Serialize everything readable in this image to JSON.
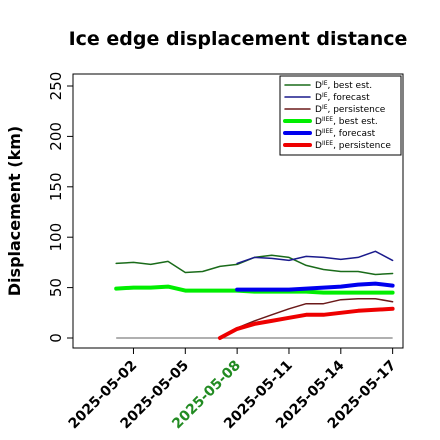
{
  "chart_data": {
    "type": "line",
    "title": "Ice edge displacement distance",
    "ylabel": "Displacement (km)",
    "xlabel": "",
    "ylim": [
      0,
      250
    ],
    "xlim": [
      -1.5,
      17.6
    ],
    "yticks": [
      0,
      50,
      100,
      150,
      200,
      250
    ],
    "xticks": [
      {
        "x": 2,
        "label": "2025-05-02",
        "color": "#000000"
      },
      {
        "x": 5,
        "label": "2025-05-05",
        "color": "#000000"
      },
      {
        "x": 8,
        "label": "2025-05-08",
        "color": "#228b22"
      },
      {
        "x": 11,
        "label": "2025-05-11",
        "color": "#000000"
      },
      {
        "x": 14,
        "label": "2025-05-14",
        "color": "#000000"
      },
      {
        "x": 17,
        "label": "2025-05-17",
        "color": "#000000"
      }
    ],
    "zero_line": {
      "x": [
        1,
        17
      ],
      "y": 0,
      "color": "#808080"
    },
    "series": [
      {
        "name": "DIE, best est.",
        "color": "#1a6b1a",
        "width": 1.5,
        "x": [
          1,
          2,
          3,
          4,
          5,
          6,
          7,
          8,
          9,
          10,
          11,
          12,
          13,
          14,
          15,
          16,
          17
        ],
        "y": [
          74,
          75,
          73,
          76,
          65,
          66,
          71,
          73,
          80,
          82,
          80,
          72,
          68,
          66,
          66,
          63,
          64
        ]
      },
      {
        "name": "DIE, forecast",
        "color": "#1a1a8c",
        "width": 1.5,
        "x": [
          8,
          9,
          10,
          11,
          12,
          13,
          14,
          15,
          16,
          17
        ],
        "y": [
          74,
          80,
          79,
          77,
          81,
          80,
          78,
          80,
          86,
          77
        ]
      },
      {
        "name": "DIE, persistence",
        "color": "#6b1a1a",
        "width": 1.5,
        "x": [
          7,
          8,
          9,
          10,
          11,
          12,
          13,
          14,
          15,
          16,
          17
        ],
        "y": [
          0,
          10,
          17,
          23,
          29,
          34,
          34,
          38,
          39,
          39,
          36
        ]
      },
      {
        "name": "DIIEE, best est.",
        "color": "#00ee00",
        "width": 4,
        "x": [
          1,
          2,
          3,
          4,
          5,
          6,
          7,
          8,
          9,
          10,
          11,
          12,
          13,
          14,
          15,
          16,
          17
        ],
        "y": [
          49,
          50,
          50,
          51,
          47,
          47,
          47,
          47,
          46,
          46,
          46,
          46,
          45,
          45,
          45,
          45,
          45
        ]
      },
      {
        "name": "DIIEE, forecast",
        "color": "#0000ee",
        "width": 4,
        "x": [
          8,
          9,
          10,
          11,
          12,
          13,
          14,
          15,
          16,
          17
        ],
        "y": [
          48,
          48,
          48,
          48,
          49,
          50,
          51,
          53,
          54,
          52
        ]
      },
      {
        "name": "DIIEE, persistence",
        "color": "#ee0000",
        "width": 4,
        "x": [
          7,
          8,
          9,
          10,
          11,
          12,
          13,
          14,
          15,
          16,
          17
        ],
        "y": [
          0,
          9,
          14,
          17,
          20,
          23,
          23,
          25,
          27,
          28,
          29
        ]
      }
    ],
    "legend": {
      "position": "top-right",
      "entries": [
        {
          "sym": "D",
          "sup": "IE",
          "text": ", best est.",
          "color": "#1a6b1a",
          "width": 1.5
        },
        {
          "sym": "D",
          "sup": "IE",
          "text": ", forecast",
          "color": "#1a1a8c",
          "width": 1.5
        },
        {
          "sym": "D",
          "sup": "IE",
          "text": ", persistence",
          "color": "#6b1a1a",
          "width": 1.5
        },
        {
          "sym": "D",
          "sup": "IIEE",
          "text": ", best est.",
          "color": "#00ee00",
          "width": 4
        },
        {
          "sym": "D",
          "sup": "IIEE",
          "text": ", forecast",
          "color": "#0000ee",
          "width": 4
        },
        {
          "sym": "D",
          "sup": "IIEE",
          "text": ", persistence",
          "color": "#ee0000",
          "width": 4
        }
      ]
    }
  }
}
